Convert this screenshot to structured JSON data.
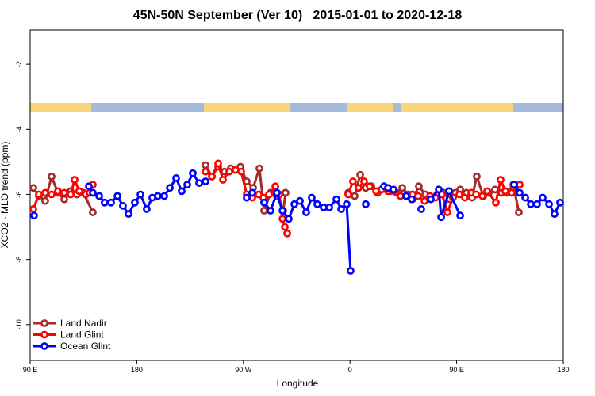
{
  "chart_data": {
    "type": "line",
    "title": "45N-50N September (Ver 10)   2015-01-01 to 2020-12-18",
    "x_label": "Longitude",
    "y_label": "XCO2 - MLO trend (ppm)",
    "xlim": [
      90,
      540
    ],
    "ylim": [
      -11.1,
      -0.95
    ],
    "xticks": [
      {
        "value": 90,
        "label": "90 E"
      },
      {
        "value": 180,
        "label": "180"
      },
      {
        "value": 270,
        "label": "90 W"
      },
      {
        "value": 360,
        "label": "0"
      },
      {
        "value": 450,
        "label": "90 E"
      },
      {
        "value": 540,
        "label": "180"
      }
    ],
    "yticks": [
      -2,
      -4,
      -6,
      -8,
      -10
    ],
    "legend": "bottom-left",
    "series": [
      {
        "name": "Land Nadir",
        "color": "#a52a2a",
        "x": [
          92.7,
          97.4,
          102.7,
          108.1,
          113.4,
          118.8,
          124.2,
          129.5,
          134.9,
          142.9,
          null,
          238,
          243.4,
          248.7,
          254.1,
          259.4,
          267.5,
          272.8,
          278.2,
          283.5,
          287.5,
          292.9,
          298.3,
          303.6,
          305.6,
          null,
          358.5,
          363.9,
          368.6,
          373.3,
          378,
          383.3,
          388.7,
          394,
          399.4,
          404.1,
          409.4,
          412.8,
          418.1,
          423.5,
          428.2,
          433.5,
          438.9,
          444.2,
          448.9,
          453,
          458.3,
          463,
          467,
          472.4,
          477.1,
          482.4,
          487.8,
          492.5,
          497.8,
          502.5
        ],
        "values": [
          -5.8,
          -6.05,
          -6.2,
          -5.45,
          -5.95,
          -6.15,
          -5.9,
          -6,
          -5.95,
          -6.55,
          null,
          -5.1,
          -5.45,
          -5.15,
          -5.3,
          -5.2,
          -5.15,
          -5.6,
          -5.8,
          -5.2,
          -6.5,
          -5.95,
          -6.05,
          -6.5,
          -5.95,
          null,
          -5.95,
          -6.05,
          -5.4,
          -5.8,
          -5.75,
          -5.95,
          -5.8,
          -5.9,
          -5.95,
          -5.8,
          -6,
          -6.15,
          -5.75,
          -6,
          -6.1,
          -6,
          -5.95,
          -6.15,
          -5.95,
          -5.85,
          -5.95,
          -6.1,
          -5.45,
          -6.05,
          -5.95,
          -5.85,
          -5.95,
          -5.95,
          -5.7,
          -6.55
        ]
      },
      {
        "name": "Land Glint",
        "color": "#ff0000",
        "x": [
          92.7,
          97.4,
          102.7,
          108.1,
          113.4,
          118.8,
          124.2,
          127.5,
          131.5,
          136.9,
          140.2,
          142.9,
          null,
          238,
          243.4,
          248.7,
          252.7,
          258.1,
          263.4,
          268.1,
          272.8,
          277.5,
          282.9,
          286.9,
          291.6,
          297,
          300.3,
          303,
          305,
          307,
          null,
          358.5,
          362.5,
          367.2,
          371.9,
          376.6,
          382,
          386.7,
          392,
          397.4,
          402.7,
          407.4,
          412.8,
          417.5,
          422.9,
          427.5,
          432.2,
          437.6,
          442.2,
          446.9,
          452.3,
          457,
          462.4,
          466.4,
          471.7,
          475.7,
          483.1,
          487.1,
          491.1,
          496.5,
          503.2
        ],
        "values": [
          -6.45,
          -6,
          -5.95,
          -6,
          -5.9,
          -5.95,
          -6,
          -5.55,
          -5.9,
          -6,
          -5.95,
          -5.7,
          null,
          -5.3,
          -5.45,
          -5.05,
          -5.55,
          -5.3,
          -5.25,
          -5.3,
          -6,
          -6.1,
          -6,
          -6.1,
          -6,
          -5.75,
          -6,
          -6.75,
          -7,
          -7.2,
          null,
          -6,
          -5.6,
          -5.8,
          -5.6,
          -5.75,
          -5.9,
          -5.85,
          -5.9,
          -5.9,
          -6.05,
          -6.05,
          -6,
          -6.05,
          -6.2,
          -6.05,
          -6.1,
          -6,
          -6.55,
          -6.1,
          -6,
          -6.1,
          -5.95,
          -6,
          -6.05,
          -5.9,
          -6.25,
          -5.55,
          -5.9,
          -5.95,
          -5.7
        ]
      },
      {
        "name": "Ocean Glint",
        "color": "#0000ff",
        "x": [
          93.3,
          null,
          139.6,
          142.9,
          148.3,
          152.9,
          158.3,
          163.7,
          168.3,
          173,
          178.4,
          183.1,
          188.4,
          193.1,
          197.8,
          203.2,
          207.9,
          213.2,
          217.9,
          222.6,
          227.3,
          232.6,
          238,
          null,
          272.8,
          277.5,
          null,
          287.5,
          292.9,
          298.3,
          303,
          308.3,
          313,
          317.7,
          323,
          327.7,
          332.4,
          337.8,
          342.5,
          348.5,
          352.5,
          357.2,
          360.5,
          null,
          373.3,
          null,
          388.7,
          392,
          396.7,
          null,
          407.4,
          412.1,
          null,
          420.1,
          null,
          428.2,
          434.9,
          436.9,
          443.6,
          453,
          null,
          498.5,
          503.2,
          507.9,
          512.6,
          517.9,
          522.6,
          528,
          532.6,
          537.3
        ],
        "values": [
          -6.65,
          null,
          -5.75,
          -5.95,
          -6.05,
          -6.25,
          -6.25,
          -6.05,
          -6.35,
          -6.6,
          -6.25,
          -6,
          -6.45,
          -6.1,
          -6.05,
          -6.05,
          -5.8,
          -5.5,
          -5.9,
          -5.7,
          -5.35,
          -5.65,
          -5.6,
          null,
          -6.1,
          -5.95,
          null,
          -6.25,
          -6.5,
          -5.95,
          -6.5,
          -6.75,
          -6.3,
          -6.2,
          -6.55,
          -6.1,
          -6.3,
          -6.4,
          -6.4,
          -6.15,
          -6.45,
          -6.3,
          -8.35,
          null,
          -6.3,
          null,
          -5.75,
          -5.8,
          -5.85,
          null,
          -6.05,
          -6.15,
          null,
          -6.45,
          null,
          -6.15,
          -5.85,
          -6.7,
          -5.9,
          -6.65,
          null,
          -5.7,
          -5.95,
          -6.1,
          -6.3,
          -6.3,
          -6.1,
          -6.3,
          -6.6,
          -6.25
        ]
      }
    ]
  }
}
